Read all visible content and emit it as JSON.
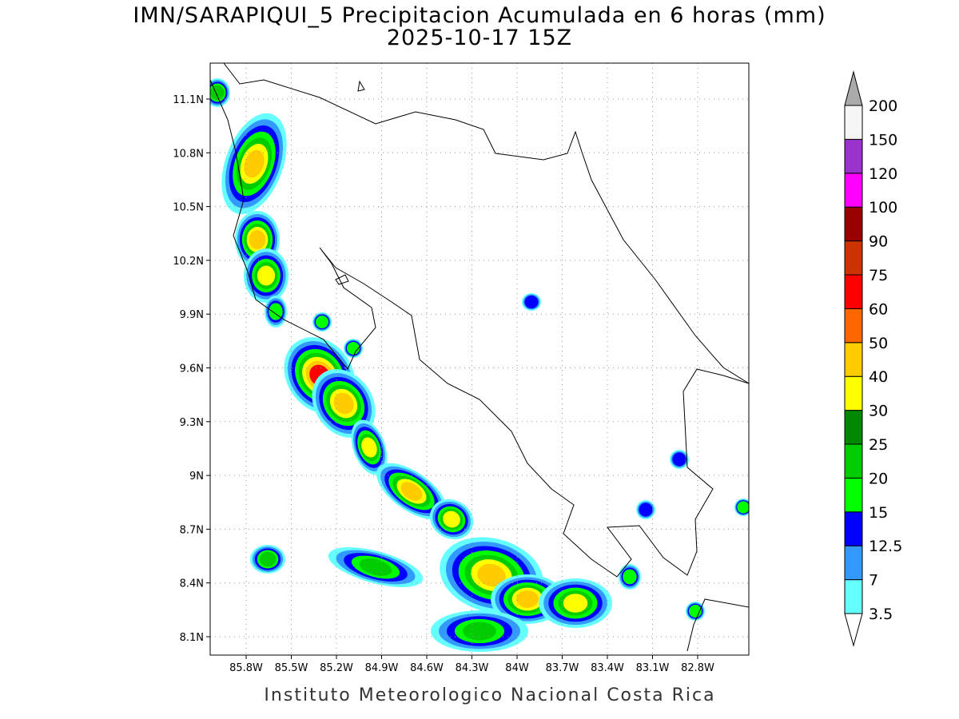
{
  "map": {
    "title": "IMN/SARAPIQUI_5 Precipitacion Acumulada en 6 horas (mm)",
    "subtitle": "2025-10-17 15Z",
    "lon_ticks": [
      "85.8W",
      "85.5W",
      "85.2W",
      "84.9W",
      "84.6W",
      "84.3W",
      "84W",
      "83.7W",
      "83.4W",
      "83.1W",
      "82.8W"
    ],
    "lat_ticks": [
      "11.1N",
      "10.8N",
      "10.5N",
      "10.2N",
      "9.9N",
      "9.6N",
      "9.3N",
      "9N",
      "8.7N",
      "8.4N",
      "8.1N"
    ],
    "colorbar": {
      "levels": [
        3.5,
        7,
        12.5,
        15,
        20,
        25,
        30,
        40,
        50,
        60,
        75,
        90,
        100,
        120,
        150,
        200
      ],
      "colors": [
        "#ffffff",
        "#66ffff",
        "#3399ff",
        "#0000ff",
        "#00ff00",
        "#00cc00",
        "#008800",
        "#ffff00",
        "#ffcc00",
        "#ff6600",
        "#ff0000",
        "#cc3300",
        "#990000",
        "#ff00ff",
        "#9933cc",
        "#f5f5f5",
        "#aaaaaa"
      ]
    },
    "credit": "Instituto Meteorologico Nacional Costa Rica"
  }
}
